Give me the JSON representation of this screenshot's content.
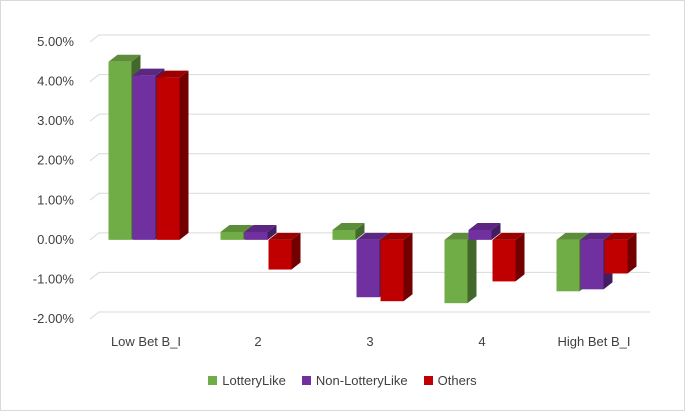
{
  "chart_data": {
    "type": "bar",
    "style": "3d-clustered-column",
    "categories": [
      "Low Bet B_I",
      "2",
      "3",
      "4",
      "High Bet B_I"
    ],
    "series": [
      {
        "name": "LotteryLike",
        "color": "#70ad47",
        "values": [
          4.5,
          0.2,
          0.25,
          -1.6,
          -1.3
        ]
      },
      {
        "name": "Non-LotteryLike",
        "color": "#7030a0",
        "values": [
          4.15,
          0.2,
          -1.45,
          0.25,
          -1.25
        ]
      },
      {
        "name": "Others",
        "color": "#c00000",
        "values": [
          4.1,
          -0.75,
          -1.55,
          -1.05,
          -0.85
        ]
      }
    ],
    "y_ticks": [
      "5.00%",
      "4.00%",
      "3.00%",
      "2.00%",
      "1.00%",
      "0.00%",
      "-1.00%",
      "-2.00%"
    ],
    "ylim": [
      -2,
      5
    ],
    "grid": true,
    "legend_position": "bottom",
    "title": "",
    "xlabel": "",
    "ylabel": ""
  }
}
